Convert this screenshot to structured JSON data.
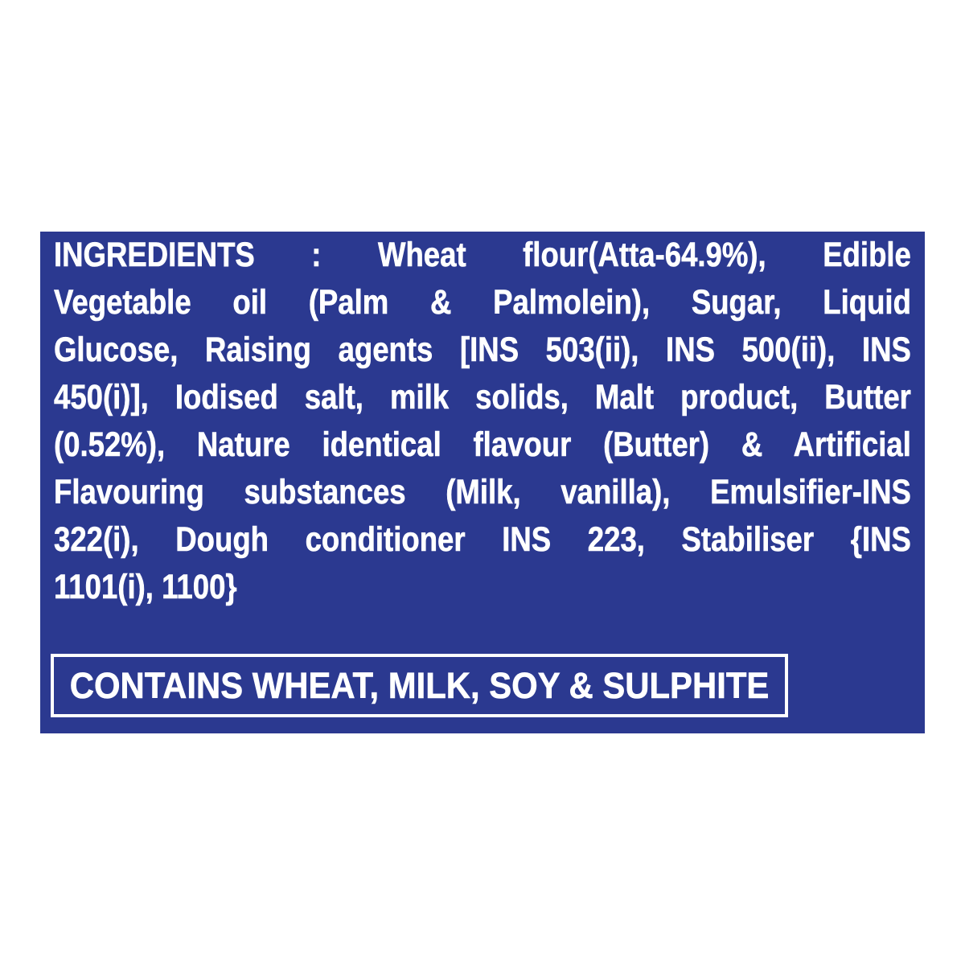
{
  "colors": {
    "page_background": "#ffffff",
    "panel_background": "#2B3990",
    "text": "#ffffff",
    "allergen_box_border": "#ffffff"
  },
  "panel": {
    "ingredients": {
      "lines": [
        "INGREDIENTS : Wheat flour(Atta-64.9%), Edible",
        "Vegetable oil (Palm & Palmolein), Sugar, Liquid",
        "Glucose, Raising agents [INS 503(ii), INS 500(ii), INS",
        "450(i)], Iodised salt, milk solids, Malt product, Butter",
        "(0.52%), Nature identical flavour (Butter) & Artificial",
        "Flavouring substances (Milk, vanilla), Emulsifier-INS",
        "322(i), Dough conditioner INS 223, Stabiliser {INS",
        "1101(i), 1100}"
      ],
      "full_text": "INGREDIENTS : Wheat flour(Atta-64.9%), Edible Vegetable oil (Palm & Palmolein), Sugar, Liquid Glucose, Raising agents [INS 503(ii), INS 500(ii), INS 450(i)], Iodised salt, milk solids, Malt product, Butter (0.52%), Nature identical flavour (Butter) & Artificial Flavouring substances (Milk, vanilla), Emulsifier-INS 322(i), Dough conditioner INS 223, Stabiliser {INS 1101(i), 1100}"
    },
    "allergen_box": {
      "text": "CONTAINS WHEAT, MILK, SOY & SULPHITE"
    }
  }
}
